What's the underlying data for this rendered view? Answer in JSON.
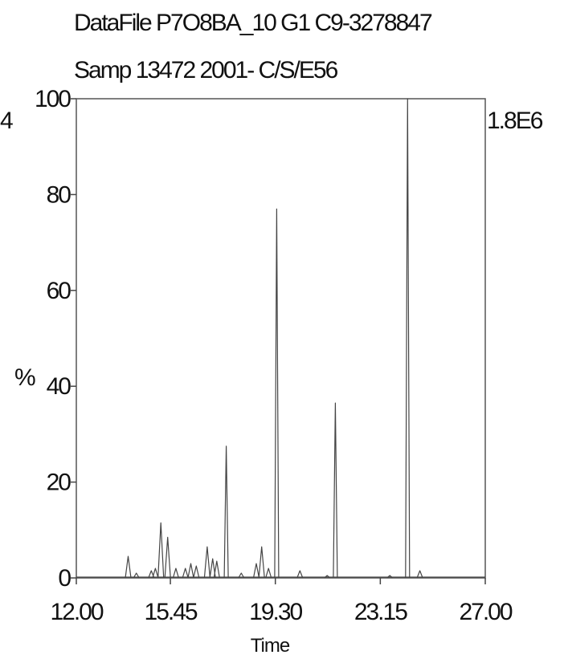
{
  "header": {
    "line1": "DataFile P7O8BA_10  G1 C9-3278847",
    "line2": "Samp 13472 2001- C/S/E56",
    "left_edge_fragment": "4"
  },
  "chart_data": {
    "type": "line",
    "title": "",
    "xlabel": "Time",
    "ylabel": "%",
    "xlim": [
      12.0,
      27.0
    ],
    "ylim": [
      0,
      100
    ],
    "x_ticks": [
      12.0,
      15.45,
      19.3,
      23.15,
      27.0
    ],
    "x_tick_labels": [
      "12.00",
      "15.45",
      "19.30",
      "23.15",
      "27.00"
    ],
    "y_ticks": [
      0,
      20,
      40,
      60,
      80,
      100
    ],
    "y_tick_labels": [
      "0",
      "20",
      "40",
      "60",
      "80",
      "100"
    ],
    "scale_label": "1.8E6",
    "grid": false,
    "line_color": "#444444",
    "series": [
      {
        "peaks": [
          {
            "x": 13.9,
            "y": 4.5
          },
          {
            "x": 14.2,
            "y": 1.0
          },
          {
            "x": 14.75,
            "y": 1.5
          },
          {
            "x": 14.9,
            "y": 2.0
          },
          {
            "x": 15.1,
            "y": 11.5
          },
          {
            "x": 15.35,
            "y": 8.5
          },
          {
            "x": 15.65,
            "y": 2.0
          },
          {
            "x": 16.0,
            "y": 2.0
          },
          {
            "x": 16.2,
            "y": 3.0
          },
          {
            "x": 16.4,
            "y": 2.5
          },
          {
            "x": 16.8,
            "y": 6.5
          },
          {
            "x": 17.0,
            "y": 4.0
          },
          {
            "x": 17.15,
            "y": 3.5
          },
          {
            "x": 17.5,
            "y": 27.5
          },
          {
            "x": 18.05,
            "y": 1.0
          },
          {
            "x": 18.6,
            "y": 3.0
          },
          {
            "x": 18.8,
            "y": 6.5
          },
          {
            "x": 19.05,
            "y": 2.0
          },
          {
            "x": 19.35,
            "y": 77.0
          },
          {
            "x": 20.2,
            "y": 1.5
          },
          {
            "x": 21.2,
            "y": 0.5
          },
          {
            "x": 21.5,
            "y": 36.5
          },
          {
            "x": 23.5,
            "y": 0.5
          },
          {
            "x": 24.15,
            "y": 100.0
          },
          {
            "x": 24.6,
            "y": 1.5
          }
        ]
      }
    ]
  }
}
